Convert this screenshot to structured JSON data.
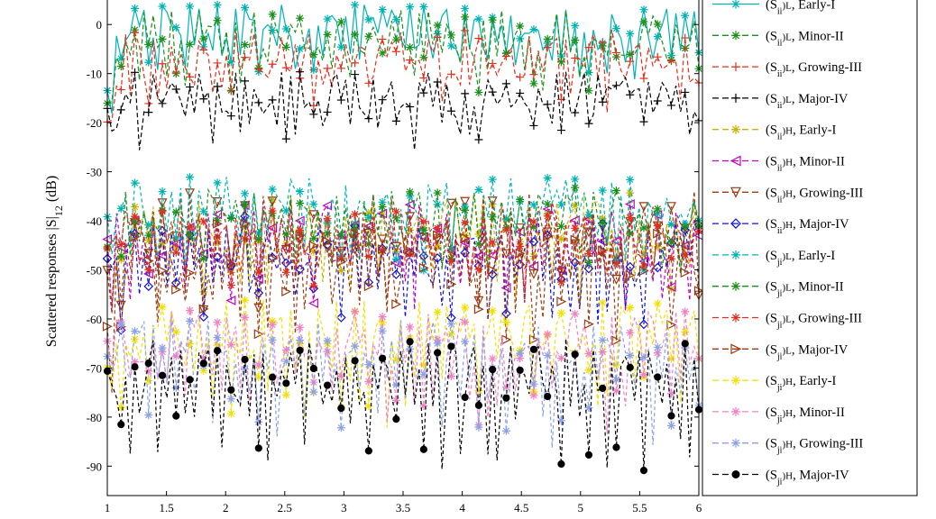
{
  "chart_data": {
    "type": "line",
    "ylabel": "Scattered responses |S|",
    "ylabel_sub": "12",
    "ylabel_unit": " (dB)",
    "xlim": [
      1,
      6
    ],
    "ylim": [
      -96,
      5
    ],
    "xticks": [
      1,
      1.5,
      2,
      2.5,
      3,
      3.5,
      4,
      4.5,
      5,
      5.5,
      6
    ],
    "yticks": [
      0,
      -10,
      -20,
      -30,
      -40,
      -50,
      -60,
      -70,
      -80,
      -90
    ],
    "grid": false,
    "legend_position": "right",
    "series": [
      {
        "name_pre": "(S",
        "name_sub": "ii",
        "name_tag": ")L",
        "name": "Early-I",
        "color": "#00b3b3",
        "marker": "asterisk",
        "level": 0,
        "amp": 5,
        "spike": 8,
        "start": -15
      },
      {
        "name_pre": "(S",
        "name_sub": "ii",
        "name_tag": ")L",
        "name": "Minor-II",
        "color": "#1a8f1a",
        "marker": "asterisk",
        "level": -2,
        "amp": 5,
        "spike": 8,
        "start": -16
      },
      {
        "name_pre": "(S",
        "name_sub": "ii",
        "name_tag": ")L",
        "name": "Growing-III",
        "color": "#e0301e",
        "marker": "plus",
        "level": -6,
        "amp": 5,
        "spike": 8,
        "start": -18
      },
      {
        "name_pre": "(S",
        "name_sub": "ii",
        "name_tag": ")L",
        "name": "Major-IV",
        "color": "#000000",
        "marker": "plus",
        "level": -14,
        "amp": 5,
        "spike": 7,
        "start": -22
      },
      {
        "name_pre": "(S",
        "name_sub": "ii",
        "name_tag": ")H",
        "name": "Early-I",
        "color": "#c8b400",
        "marker": "star",
        "level": -40,
        "amp": 6,
        "spike": 14,
        "start": -45
      },
      {
        "name_pre": "(S",
        "name_sub": "ii",
        "name_tag": ")H",
        "name": "Minor-II",
        "color": "#c000c0",
        "marker": "tri-left",
        "level": -42,
        "amp": 6,
        "spike": 14,
        "start": -45
      },
      {
        "name_pre": "(S",
        "name_sub": "ii",
        "name_tag": ")H",
        "name": "Growing-III",
        "color": "#9a3a10",
        "marker": "tri-down",
        "level": -40,
        "amp": 6,
        "spike": 14,
        "start": -48
      },
      {
        "name_pre": "(S",
        "name_sub": "ii",
        "name_tag": ")H",
        "name": "Major-IV",
        "color": "#1010e0",
        "marker": "diamond",
        "level": -45,
        "amp": 6,
        "spike": 14,
        "start": -50
      },
      {
        "name_pre": "(S",
        "name_sub": "ji",
        "name_tag": ")L",
        "name": "Early-I",
        "color": "#00b3b3",
        "marker": "star",
        "level": -36,
        "amp": 5,
        "spike": 10,
        "start": -40
      },
      {
        "name_pre": "(S",
        "name_sub": "ji",
        "name_tag": ")L",
        "name": "Minor-II",
        "color": "#1a8f1a",
        "marker": "star",
        "level": -38,
        "amp": 5,
        "spike": 10,
        "start": -42
      },
      {
        "name_pre": "(S",
        "name_sub": "ji",
        "name_tag": ")L",
        "name": "Growing-III",
        "color": "#e0301e",
        "marker": "star",
        "level": -42,
        "amp": 5,
        "spike": 10,
        "start": -44
      },
      {
        "name_pre": "(S",
        "name_sub": "ji",
        "name_tag": ")L",
        "name": "Major-IV",
        "color": "#9a3a10",
        "marker": "tri-right",
        "level": -46,
        "amp": 6,
        "spike": 14,
        "start": -60
      },
      {
        "name_pre": "(S",
        "name_sub": "ji",
        "name_tag": ")H",
        "name": "Early-I",
        "color": "#f0e000",
        "marker": "star",
        "level": -62,
        "amp": 6,
        "spike": 16,
        "start": -64
      },
      {
        "name_pre": "(S",
        "name_sub": "ji",
        "name_tag": ")H",
        "name": "Minor-II",
        "color": "#f080c0",
        "marker": "star",
        "level": -64,
        "amp": 6,
        "spike": 16,
        "start": -66
      },
      {
        "name_pre": "(S",
        "name_sub": "ji",
        "name_tag": ")H",
        "name": "Growing-III",
        "color": "#8aa0e8",
        "marker": "star",
        "level": -66,
        "amp": 6,
        "spike": 16,
        "start": -68
      },
      {
        "name_pre": "(S",
        "name_sub": "ji",
        "name_tag": ")H",
        "name": "Major-IV",
        "color": "#000000",
        "marker": "circle",
        "level": -70,
        "amp": 6,
        "spike": 18,
        "start": -74
      }
    ]
  }
}
